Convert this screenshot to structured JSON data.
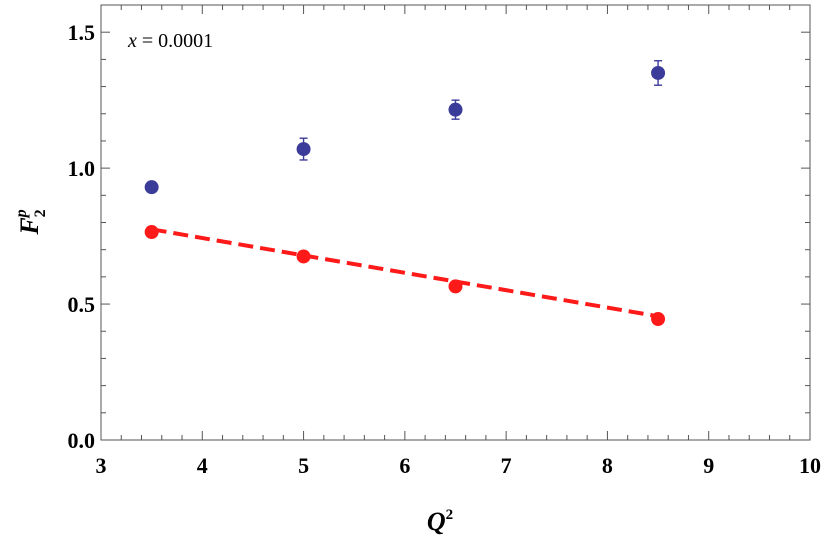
{
  "chart_data": {
    "type": "scatter",
    "annotation": {
      "var": "x",
      "value": "0.0001"
    },
    "xlabel": {
      "base": "Q",
      "sup": "2"
    },
    "ylabel": {
      "base": "F",
      "sub": "2",
      "sup": "p"
    },
    "xlim": [
      3,
      10
    ],
    "ylim": [
      0,
      1.6
    ],
    "x_ticks": [
      3,
      4,
      5,
      6,
      7,
      8,
      9,
      10
    ],
    "x_tick_labels": [
      "3",
      "4",
      "5",
      "6",
      "7",
      "8",
      "9",
      "10"
    ],
    "y_ticks": [
      0.0,
      0.5,
      1.0,
      1.5
    ],
    "y_tick_labels": [
      "0.0",
      "0.5",
      "1.0",
      "1.5"
    ],
    "x_minor_step": 0.2,
    "y_minor_step": 0.1,
    "grid": false,
    "series": [
      {
        "kind": "points-with-errorbars",
        "color": "#3b3b9a",
        "points": [
          {
            "x": 3.5,
            "y": 0.93,
            "err": 0.0
          },
          {
            "x": 5.0,
            "y": 1.07,
            "err": 0.04
          },
          {
            "x": 6.5,
            "y": 1.215,
            "err": 0.035
          },
          {
            "x": 8.5,
            "y": 1.35,
            "err": 0.045
          }
        ]
      },
      {
        "kind": "points",
        "color": "#ff1a1a",
        "points": [
          {
            "x": 3.5,
            "y": 0.765
          },
          {
            "x": 5.0,
            "y": 0.675
          },
          {
            "x": 6.5,
            "y": 0.565
          },
          {
            "x": 8.5,
            "y": 0.445
          }
        ]
      },
      {
        "kind": "dashed-line",
        "color": "#ff1a1a",
        "x": [
          3.5,
          8.5
        ],
        "y": [
          0.775,
          0.455
        ]
      }
    ]
  }
}
